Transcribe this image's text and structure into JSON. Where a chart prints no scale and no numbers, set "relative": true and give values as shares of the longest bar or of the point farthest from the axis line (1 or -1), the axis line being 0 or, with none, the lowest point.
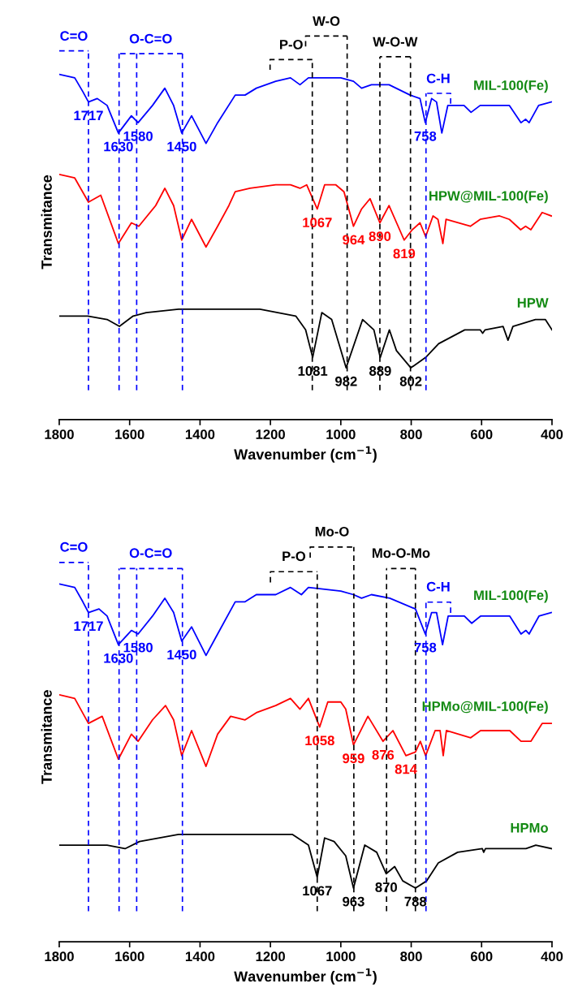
{
  "chart_data": [
    {
      "type": "line",
      "relative": true,
      "tick_labels": "x",
      "xlabel": "Wavenumber (cm$^{−1}$)",
      "ylabel": "Transmitance",
      "xlim": [
        1800,
        400
      ],
      "xticks": [
        1800,
        1600,
        1400,
        1200,
        1000,
        800,
        600,
        400
      ],
      "series": [
        {
          "name": "MIL-100(Fe)",
          "color": "#0000ff",
          "x": [
            1800,
            1756,
            1733,
            1717,
            1692,
            1664,
            1632,
            1595,
            1576,
            1535,
            1500,
            1475,
            1452,
            1424,
            1383,
            1350,
            1300,
            1272,
            1240,
            1185,
            1143,
            1116,
            1092,
            1000,
            964,
            941,
            913,
            863,
            803,
            775,
            760,
            742,
            728,
            713,
            696,
            650,
            630,
            604,
            521,
            488,
            475,
            465,
            438,
            402
          ],
          "values": [
            1.0,
            0.99,
            0.95,
            0.92,
            0.93,
            0.91,
            0.83,
            0.88,
            0.86,
            0.91,
            0.96,
            0.91,
            0.83,
            0.88,
            0.8,
            0.86,
            0.94,
            0.94,
            0.96,
            0.98,
            0.99,
            0.97,
            0.99,
            0.99,
            0.98,
            0.96,
            0.97,
            0.97,
            0.94,
            0.93,
            0.86,
            0.93,
            0.92,
            0.83,
            0.91,
            0.91,
            0.89,
            0.91,
            0.91,
            0.86,
            0.87,
            0.86,
            0.91,
            0.92
          ]
        },
        {
          "name": "HPW@MIL-100(Fe)",
          "color": "#ff0000",
          "x": [
            1800,
            1756,
            1717,
            1682,
            1632,
            1595,
            1574,
            1526,
            1500,
            1475,
            1452,
            1424,
            1383,
            1350,
            1318,
            1300,
            1258,
            1185,
            1143,
            1116,
            1097,
            1067,
            1046,
            1014,
            991,
            964,
            941,
            917,
            889,
            863,
            820,
            797,
            775,
            759,
            738,
            724,
            710,
            701,
            632,
            604,
            549,
            521,
            489,
            475,
            460,
            428,
            402
          ],
          "values": [
            0.71,
            0.7,
            0.63,
            0.65,
            0.51,
            0.57,
            0.56,
            0.62,
            0.67,
            0.62,
            0.52,
            0.58,
            0.5,
            0.56,
            0.62,
            0.66,
            0.67,
            0.68,
            0.68,
            0.67,
            0.68,
            0.61,
            0.68,
            0.68,
            0.66,
            0.56,
            0.61,
            0.64,
            0.57,
            0.62,
            0.52,
            0.55,
            0.57,
            0.53,
            0.59,
            0.58,
            0.51,
            0.58,
            0.56,
            0.58,
            0.59,
            0.58,
            0.55,
            0.56,
            0.55,
            0.6,
            0.59
          ]
        },
        {
          "name": "HPW",
          "color": "#000000",
          "x": [
            1800,
            1719,
            1664,
            1629,
            1590,
            1553,
            1461,
            1350,
            1230,
            1128,
            1100,
            1080,
            1054,
            1026,
            985,
            938,
            906,
            888,
            862,
            842,
            801,
            759,
            722,
            648,
            604,
            597,
            590,
            539,
            525,
            511,
            447,
            428,
            419,
            400
          ],
          "values": [
            0.3,
            0.3,
            0.29,
            0.27,
            0.3,
            0.31,
            0.32,
            0.32,
            0.32,
            0.3,
            0.26,
            0.18,
            0.31,
            0.29,
            0.15,
            0.29,
            0.26,
            0.18,
            0.26,
            0.2,
            0.15,
            0.18,
            0.22,
            0.26,
            0.26,
            0.25,
            0.26,
            0.27,
            0.23,
            0.27,
            0.29,
            0.29,
            0.29,
            0.26
          ]
        }
      ],
      "annotations": [
        {
          "text": "1717",
          "x": 1717,
          "y": 0.92
        },
        {
          "text": "1630",
          "x": 1632,
          "y": 0.83
        },
        {
          "text": "1580",
          "x": 1576,
          "y": 0.86
        },
        {
          "text": "1450",
          "x": 1452,
          "y": 0.83
        },
        {
          "text": "758",
          "x": 760,
          "y": 0.86
        },
        {
          "text": "1067",
          "x": 1067,
          "y": 0.61
        },
        {
          "text": "964",
          "x": 964,
          "y": 0.56
        },
        {
          "text": "890",
          "x": 889,
          "y": 0.57
        },
        {
          "text": "819",
          "x": 820,
          "y": 0.52
        },
        {
          "text": "1081",
          "x": 1080,
          "y": 0.18
        },
        {
          "text": "982",
          "x": 985,
          "y": 0.15
        },
        {
          "text": "889",
          "x": 888,
          "y": 0.18
        },
        {
          "text": "802",
          "x": 801,
          "y": 0.15
        }
      ],
      "ref_lines": [
        {
          "axis": "x",
          "value": 1717,
          "label": "C=O",
          "color": "#0000ff",
          "line_style": "dashed"
        },
        {
          "axis": "x",
          "value": 1630,
          "label": "O-C=O",
          "color": "#0000ff",
          "line_style": "dashed"
        },
        {
          "axis": "x",
          "value": 1580,
          "color": "#0000ff",
          "line_style": "dashed"
        },
        {
          "axis": "x",
          "value": 1450,
          "color": "#0000ff",
          "line_style": "dashed"
        },
        {
          "axis": "x",
          "value": 758,
          "label": "C-H",
          "color": "#0000ff",
          "line_style": "dashed"
        },
        {
          "axis": "x",
          "value": 1081,
          "label": "P-O",
          "color": "#000000",
          "line_style": "dashed"
        },
        {
          "axis": "x",
          "value": 982,
          "label": "W-O",
          "color": "#000000",
          "line_style": "dashed"
        },
        {
          "axis": "x",
          "value": 889,
          "label": "W-O-W",
          "color": "#000000",
          "line_style": "dashed"
        },
        {
          "axis": "x",
          "value": 802,
          "color": "#000000",
          "line_style": "dashed"
        }
      ]
    },
    {
      "type": "line",
      "relative": true,
      "tick_labels": "x",
      "xlabel": "Wavenumber (cm$^{−1}$)",
      "ylabel": "Transmitance",
      "xlim": [
        1800,
        400
      ],
      "xticks": [
        1800,
        1600,
        1400,
        1200,
        1000,
        800,
        600,
        400
      ],
      "series": [
        {
          "name": "MIL-100(Fe)",
          "color": "#0000ff",
          "x": [
            1800,
            1756,
            1733,
            1717,
            1687,
            1664,
            1632,
            1595,
            1576,
            1535,
            1500,
            1475,
            1452,
            1424,
            1383,
            1350,
            1300,
            1272,
            1240,
            1185,
            1143,
            1112,
            1092,
            1000,
            964,
            941,
            913,
            861,
            788,
            760,
            742,
            728,
            711,
            695,
            649,
            628,
            603,
            520,
            488,
            474,
            465,
            437,
            402
          ],
          "values": [
            1.0,
            0.99,
            0.95,
            0.92,
            0.93,
            0.91,
            0.83,
            0.87,
            0.86,
            0.91,
            0.96,
            0.92,
            0.84,
            0.88,
            0.8,
            0.86,
            0.95,
            0.95,
            0.97,
            0.97,
            0.99,
            0.97,
            0.99,
            0.98,
            0.97,
            0.96,
            0.97,
            0.96,
            0.93,
            0.86,
            0.92,
            0.92,
            0.83,
            0.91,
            0.91,
            0.89,
            0.91,
            0.91,
            0.86,
            0.87,
            0.86,
            0.91,
            0.92
          ]
        },
        {
          "name": "HPMo@MIL-100(Fe)",
          "color": "#ff0000",
          "x": [
            1800,
            1756,
            1717,
            1678,
            1632,
            1595,
            1576,
            1535,
            1498,
            1475,
            1452,
            1424,
            1383,
            1350,
            1313,
            1272,
            1240,
            1185,
            1143,
            1116,
            1092,
            1060,
            1037,
            1000,
            986,
            964,
            923,
            880,
            852,
            815,
            788,
            774,
            759,
            732,
            718,
            709,
            700,
            631,
            603,
            520,
            488,
            474,
            460,
            428,
            402
          ],
          "values": [
            0.69,
            0.68,
            0.61,
            0.63,
            0.51,
            0.58,
            0.56,
            0.62,
            0.66,
            0.62,
            0.52,
            0.59,
            0.49,
            0.58,
            0.63,
            0.62,
            0.64,
            0.66,
            0.68,
            0.65,
            0.68,
            0.6,
            0.67,
            0.67,
            0.65,
            0.55,
            0.63,
            0.56,
            0.59,
            0.52,
            0.53,
            0.56,
            0.52,
            0.59,
            0.59,
            0.52,
            0.59,
            0.57,
            0.59,
            0.59,
            0.56,
            0.56,
            0.56,
            0.61,
            0.61
          ]
        },
        {
          "name": "HPMo",
          "color": "#000000",
          "x": [
            1800,
            1664,
            1613,
            1572,
            1461,
            1350,
            1138,
            1092,
            1067,
            1046,
            1019,
            986,
            964,
            932,
            898,
            871,
            847,
            824,
            788,
            756,
            723,
            668,
            598,
            594,
            589,
            520,
            474,
            446,
            400
          ],
          "values": [
            0.27,
            0.27,
            0.26,
            0.28,
            0.3,
            0.3,
            0.3,
            0.27,
            0.18,
            0.29,
            0.28,
            0.24,
            0.15,
            0.27,
            0.25,
            0.19,
            0.21,
            0.17,
            0.15,
            0.17,
            0.22,
            0.25,
            0.26,
            0.25,
            0.26,
            0.26,
            0.26,
            0.27,
            0.26
          ]
        }
      ],
      "annotations": [
        {
          "text": "1717",
          "x": 1717,
          "y": 0.92
        },
        {
          "text": "1630",
          "x": 1632,
          "y": 0.83
        },
        {
          "text": "1580",
          "x": 1576,
          "y": 0.86
        },
        {
          "text": "1450",
          "x": 1452,
          "y": 0.84
        },
        {
          "text": "758",
          "x": 760,
          "y": 0.86
        },
        {
          "text": "1058",
          "x": 1060,
          "y": 0.6
        },
        {
          "text": "959",
          "x": 964,
          "y": 0.55
        },
        {
          "text": "876",
          "x": 880,
          "y": 0.56
        },
        {
          "text": "814",
          "x": 815,
          "y": 0.52
        },
        {
          "text": "1067",
          "x": 1067,
          "y": 0.18
        },
        {
          "text": "963",
          "x": 964,
          "y": 0.15
        },
        {
          "text": "870",
          "x": 871,
          "y": 0.19
        },
        {
          "text": "788",
          "x": 788,
          "y": 0.15
        }
      ],
      "ref_lines": [
        {
          "axis": "x",
          "value": 1717,
          "label": "C=O",
          "color": "#0000ff",
          "line_style": "dashed"
        },
        {
          "axis": "x",
          "value": 1630,
          "label": "O-C=O",
          "color": "#0000ff",
          "line_style": "dashed"
        },
        {
          "axis": "x",
          "value": 1580,
          "color": "#0000ff",
          "line_style": "dashed"
        },
        {
          "axis": "x",
          "value": 1450,
          "color": "#0000ff",
          "line_style": "dashed"
        },
        {
          "axis": "x",
          "value": 758,
          "label": "C-H",
          "color": "#0000ff",
          "line_style": "dashed"
        },
        {
          "axis": "x",
          "value": 1067,
          "label": "P-O",
          "color": "#000000",
          "line_style": "dashed"
        },
        {
          "axis": "x",
          "value": 963,
          "label": "Mo-O",
          "color": "#000000",
          "line_style": "dashed"
        },
        {
          "axis": "x",
          "value": 870,
          "label": "Mo-O-Mo",
          "color": "#000000",
          "line_style": "dashed"
        },
        {
          "axis": "x",
          "value": 788,
          "color": "#000000",
          "line_style": "dashed"
        }
      ]
    }
  ]
}
